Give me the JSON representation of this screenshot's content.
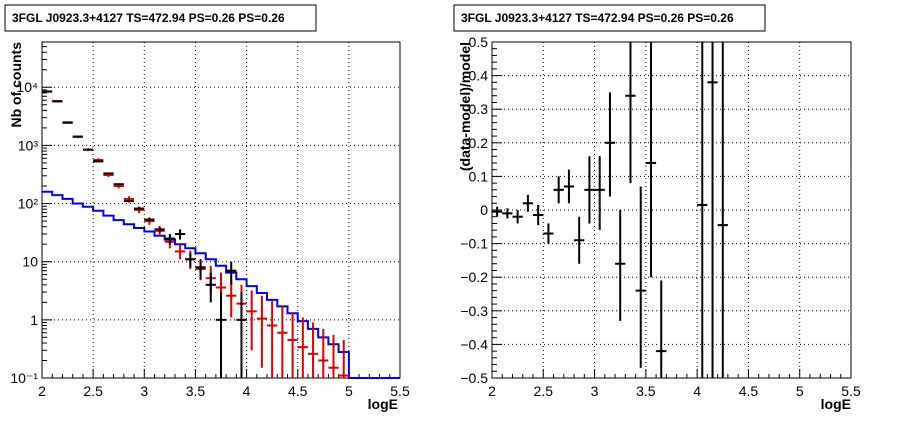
{
  "chart_data": [
    {
      "type": "scatter",
      "title": "3FGL J0923.3+4127 TS=472.94 PS=0.26 PS=0.26",
      "xlabel": "logE",
      "ylabel": "Nb of counts",
      "xlim": [
        2,
        5.5
      ],
      "ylim": [
        0.1,
        60000
      ],
      "yscale": "log",
      "grid": true,
      "x_ticks": [
        "2",
        "2.5",
        "3",
        "3.5",
        "4",
        "4.5",
        "5",
        "5.5"
      ],
      "y_ticks": [
        {
          "value": 0.1,
          "label": "10⁻¹"
        },
        {
          "value": 1,
          "label": "1"
        },
        {
          "value": 10,
          "label": "10"
        },
        {
          "value": 100,
          "label": "10²"
        },
        {
          "value": 1000,
          "label": "10³"
        },
        {
          "value": 10000,
          "label": "10⁴"
        }
      ],
      "bin_edges": [
        2.0,
        2.1,
        2.2,
        2.3,
        2.4,
        2.5,
        2.6,
        2.7,
        2.8,
        2.9,
        3.0,
        3.1,
        3.2,
        3.3,
        3.4,
        3.5,
        3.6,
        3.7,
        3.8,
        3.9,
        4.0,
        4.1,
        4.2,
        4.3,
        4.4,
        4.5,
        4.6,
        4.7,
        4.8,
        4.9,
        5.0,
        5.1,
        5.2,
        5.3,
        5.4,
        5.5
      ],
      "series": [
        {
          "kind": "step",
          "color": "#0000ee",
          "values": [
            160,
            140,
            120,
            100,
            88,
            75,
            62,
            52,
            44,
            38,
            33,
            28,
            24,
            20,
            17,
            14,
            11,
            8.5,
            6.5,
            5,
            3.8,
            2.9,
            2.2,
            1.7,
            1.3,
            0.95,
            0.7,
            0.5,
            0.38,
            0.28,
            0.1,
            0.1,
            0.1,
            0.1,
            0.1
          ]
        },
        {
          "kind": "model_points",
          "color": "#dd0000",
          "x": [
            2.05,
            2.15,
            2.25,
            2.35,
            2.45,
            2.55,
            2.65,
            2.75,
            2.85,
            2.95,
            3.05,
            3.15,
            3.25,
            3.35,
            3.45,
            3.55,
            3.65,
            3.75,
            3.85,
            3.95,
            4.05,
            4.15,
            4.25,
            4.35,
            4.45,
            4.55,
            4.65,
            4.75,
            4.85,
            4.95
          ],
          "y": [
            8500,
            5800,
            2500,
            1400,
            850,
            560,
            310,
            200,
            120,
            78,
            50,
            34,
            22,
            15,
            11,
            7.5,
            5.2,
            3.6,
            2.6,
            1.9,
            1.4,
            1.05,
            0.8,
            0.6,
            0.45,
            0.34,
            0.26,
            0.2,
            0.15,
            0.11
          ],
          "err_lo": [
            8200,
            5600,
            2400,
            1330,
            800,
            520,
            285,
            183,
            108,
            68,
            43,
            28,
            17,
            11,
            7.5,
            4.8,
            3.0,
            1.8,
            1.1,
            0.6,
            0.3,
            0.15,
            0.1,
            0.1,
            0.1,
            0.1,
            0.1,
            0.1,
            0.1,
            0.1
          ],
          "err_hi": [
            8800,
            6000,
            2600,
            1470,
            900,
            600,
            335,
            218,
            133,
            89,
            58,
            41,
            28,
            20,
            15.5,
            11,
            8.5,
            6.5,
            5.0,
            4.0,
            3.2,
            2.6,
            2.1,
            1.7,
            1.35,
            1.1,
            0.9,
            0.7,
            0.55,
            0.45
          ]
        },
        {
          "kind": "data_points",
          "color": "#000000",
          "x": [
            2.05,
            2.15,
            2.25,
            2.35,
            2.45,
            2.55,
            2.65,
            2.75,
            2.85,
            2.95,
            3.05,
            3.15,
            3.25,
            3.35,
            3.45,
            3.55,
            3.65,
            3.75,
            3.85,
            3.95
          ],
          "y": [
            8400,
            5700,
            2450,
            1420,
            840,
            530,
            330,
            215,
            110,
            82,
            53,
            36,
            25,
            30,
            11,
            8,
            4,
            1,
            7,
            1
          ],
          "err_lo": [
            8250,
            5600,
            2400,
            1390,
            820,
            515,
            320,
            207,
            104,
            77,
            49,
            32,
            20,
            24,
            8,
            5,
            2,
            0.1,
            4,
            0.1
          ],
          "err_hi": [
            8550,
            5800,
            2500,
            1450,
            860,
            545,
            340,
            223,
            116,
            87,
            57,
            40,
            30,
            36,
            14,
            11,
            6.5,
            3,
            10,
            3
          ]
        }
      ]
    },
    {
      "type": "scatter",
      "title": "3FGL J0923.3+4127 TS=472.94 PS=0.26 PS=0.26",
      "xlabel": "logE",
      "ylabel": "(data-model)/model",
      "xlim": [
        2,
        5.5
      ],
      "ylim": [
        -0.5,
        0.5
      ],
      "grid": true,
      "x_ticks": [
        "2",
        "2.5",
        "3",
        "3.5",
        "4",
        "4.5",
        "5",
        "5.5"
      ],
      "y_ticks": [
        "−0.5",
        "−0.4",
        "−0.3",
        "−0.2",
        "−0.1",
        "0",
        "0.1",
        "0.2",
        "0.3",
        "0.4",
        "0.5"
      ],
      "series": [
        {
          "kind": "residuals",
          "color": "#000000",
          "x": [
            2.05,
            2.15,
            2.25,
            2.35,
            2.45,
            2.55,
            2.65,
            2.75,
            2.85,
            2.95,
            3.05,
            3.15,
            3.25,
            3.35,
            3.45,
            3.55,
            3.65,
            4.05,
            4.15,
            4.25
          ],
          "y": [
            -0.005,
            -0.01,
            -0.02,
            0.02,
            -0.015,
            -0.07,
            0.06,
            0.07,
            -0.09,
            0.06,
            0.06,
            0.2,
            -0.16,
            0.34,
            -0.24,
            0.14,
            -0.42,
            0.015,
            0.38,
            -0.045
          ],
          "err_lo": [
            -0.02,
            -0.025,
            -0.04,
            -0.005,
            -0.045,
            -0.1,
            0.02,
            0.02,
            -0.16,
            -0.04,
            -0.06,
            0.04,
            -0.33,
            0.08,
            -0.47,
            -0.2,
            -0.5,
            -0.5,
            -0.5,
            -0.5
          ],
          "err_hi": [
            0.01,
            0.005,
            0.0,
            0.045,
            0.015,
            -0.04,
            0.1,
            0.12,
            -0.02,
            0.16,
            0.16,
            0.35,
            0.0,
            0.5,
            0.07,
            0.5,
            -0.21,
            0.5,
            0.5,
            0.5
          ]
        }
      ]
    }
  ]
}
